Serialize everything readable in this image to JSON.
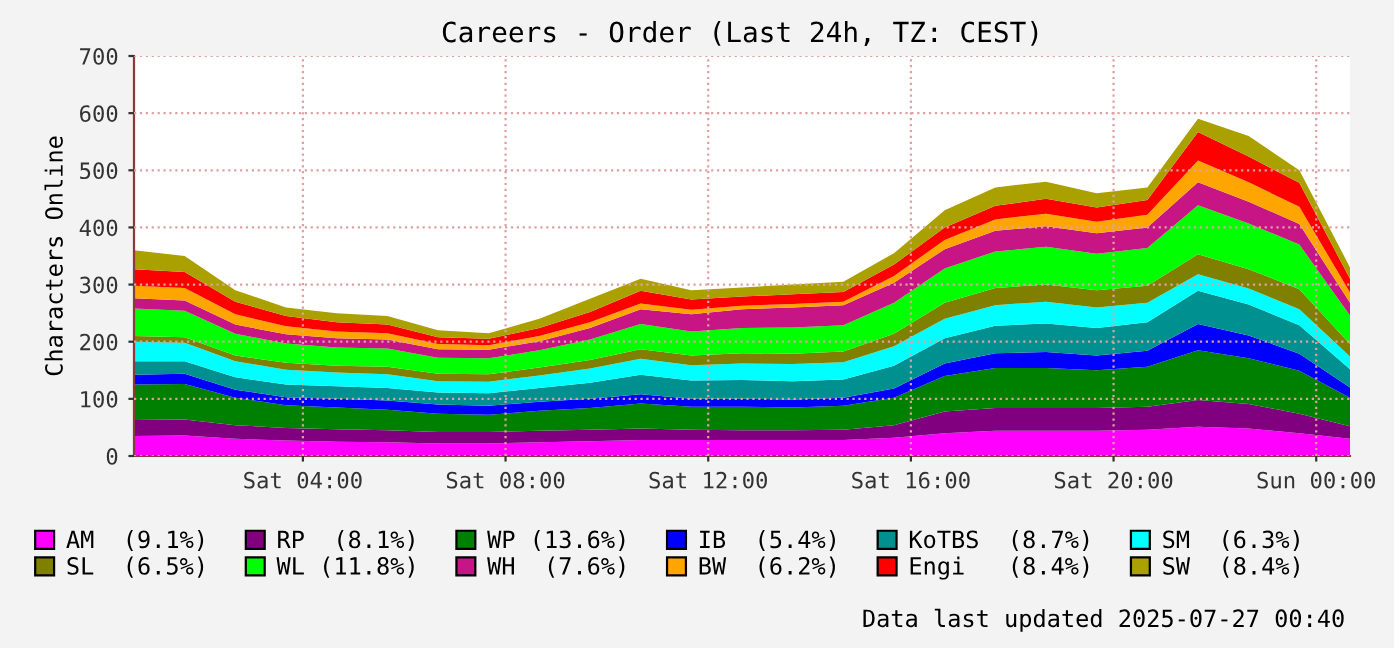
{
  "chart_data": {
    "type": "area",
    "stacked": true,
    "title": "Careers - Order (Last 24h, TZ: CEST)",
    "ylabel": "Characters Online",
    "annotations": [
      "Data last updated 2025-07-27 00:40"
    ],
    "x": [
      "2025-07-26T00:40",
      "2025-07-26T01:40",
      "2025-07-26T02:40",
      "2025-07-26T03:40",
      "2025-07-26T04:40",
      "2025-07-26T05:40",
      "2025-07-26T06:40",
      "2025-07-26T07:40",
      "2025-07-26T08:40",
      "2025-07-26T09:40",
      "2025-07-26T10:40",
      "2025-07-26T11:40",
      "2025-07-26T12:40",
      "2025-07-26T13:40",
      "2025-07-26T14:40",
      "2025-07-26T15:40",
      "2025-07-26T16:40",
      "2025-07-26T17:40",
      "2025-07-26T18:40",
      "2025-07-26T19:40",
      "2025-07-26T20:40",
      "2025-07-26T21:40",
      "2025-07-26T22:40",
      "2025-07-26T23:40",
      "2025-07-27T00:40"
    ],
    "series": [
      {
        "name": "AM  (9.1%)",
        "color": "#ff00ff",
        "values": [
          35,
          36,
          30,
          27,
          25,
          24,
          22,
          22,
          24,
          26,
          28,
          28,
          28,
          28,
          28,
          32,
          40,
          44,
          44,
          44,
          46,
          51,
          48,
          40,
          30
        ]
      },
      {
        "name": "RP  (8.1%)",
        "color": "#800080",
        "values": [
          28,
          28,
          24,
          22,
          22,
          21,
          20,
          20,
          20,
          20,
          20,
          18,
          17,
          17,
          18,
          22,
          38,
          40,
          40,
          40,
          40,
          47,
          43,
          34,
          22
        ]
      },
      {
        "name": "WP (13.6%)",
        "color": "#008000",
        "values": [
          62,
          62,
          48,
          40,
          38,
          36,
          32,
          30,
          35,
          38,
          44,
          40,
          41,
          40,
          42,
          48,
          62,
          70,
          70,
          66,
          70,
          87,
          80,
          75,
          50
        ]
      },
      {
        "name": "IB  (5.4%)",
        "color": "#0000ff",
        "values": [
          17,
          18,
          14,
          14,
          15,
          16,
          16,
          16,
          16,
          16,
          16,
          14,
          14,
          14,
          14,
          16,
          22,
          26,
          28,
          26,
          28,
          46,
          40,
          30,
          18
        ]
      },
      {
        "name": "KoTBS  (8.7%)",
        "color": "#009090",
        "values": [
          24,
          22,
          22,
          22,
          22,
          22,
          21,
          22,
          24,
          28,
          34,
          32,
          33,
          32,
          32,
          40,
          44,
          48,
          50,
          48,
          50,
          58,
          54,
          50,
          32
        ]
      },
      {
        "name": "SM  (6.3%)",
        "color": "#00ffff",
        "values": [
          34,
          32,
          28,
          26,
          24,
          24,
          20,
          20,
          22,
          25,
          28,
          27,
          29,
          30,
          30,
          34,
          34,
          36,
          38,
          36,
          34,
          29,
          28,
          28,
          22
        ]
      },
      {
        "name": "SL  (6.5%)",
        "color": "#808000",
        "values": [
          10,
          10,
          10,
          12,
          12,
          13,
          13,
          13,
          14,
          15,
          17,
          17,
          18,
          18,
          19,
          22,
          28,
          30,
          30,
          30,
          30,
          35,
          34,
          35,
          22
        ]
      },
      {
        "name": "WL (11.8%)",
        "color": "#00ff00",
        "values": [
          48,
          46,
          38,
          34,
          32,
          32,
          28,
          28,
          30,
          36,
          44,
          42,
          44,
          46,
          46,
          54,
          60,
          64,
          66,
          64,
          66,
          86,
          80,
          78,
          50
        ]
      },
      {
        "name": "WH  (7.6%)",
        "color": "#c71585",
        "values": [
          18,
          18,
          16,
          16,
          16,
          16,
          15,
          15,
          16,
          20,
          26,
          30,
          33,
          35,
          35,
          35,
          34,
          36,
          36,
          36,
          36,
          40,
          38,
          36,
          22
        ]
      },
      {
        "name": "BW  (6.2%)",
        "color": "#ffa500",
        "values": [
          22,
          22,
          18,
          14,
          12,
          11,
          9,
          8,
          9,
          10,
          10,
          8,
          6,
          6,
          6,
          12,
          16,
          20,
          22,
          20,
          22,
          38,
          34,
          30,
          18
        ]
      },
      {
        "name": "Engi   (8.4%)",
        "color": "#ff0000",
        "values": [
          29,
          28,
          22,
          18,
          16,
          15,
          12,
          11,
          14,
          18,
          22,
          18,
          16,
          17,
          17,
          20,
          22,
          24,
          26,
          25,
          26,
          50,
          45,
          42,
          24
        ]
      },
      {
        "name": "SW  (8.4%)",
        "color": "#aaa000",
        "values": [
          33,
          28,
          20,
          15,
          16,
          15,
          12,
          10,
          16,
          23,
          21,
          16,
          16,
          17,
          18,
          20,
          30,
          32,
          30,
          25,
          22,
          23,
          36,
          22,
          20
        ]
      }
    ],
    "xlim": [
      "2025-07-26T00:40",
      "2025-07-27T00:40"
    ],
    "xticks": [
      {
        "value": "2025-07-26T04:00",
        "label": "Sat 04:00"
      },
      {
        "value": "2025-07-26T08:00",
        "label": "Sat 08:00"
      },
      {
        "value": "2025-07-26T12:00",
        "label": "Sat 12:00"
      },
      {
        "value": "2025-07-26T16:00",
        "label": "Sat 16:00"
      },
      {
        "value": "2025-07-26T20:00",
        "label": "Sat 20:00"
      },
      {
        "value": "2025-07-27T00:00",
        "label": "Sun 00:00"
      }
    ],
    "ylim": [
      0,
      700
    ],
    "yticks": [
      0,
      100,
      200,
      300,
      400,
      500,
      600,
      700
    ],
    "grid": true,
    "legend": "bottom"
  }
}
